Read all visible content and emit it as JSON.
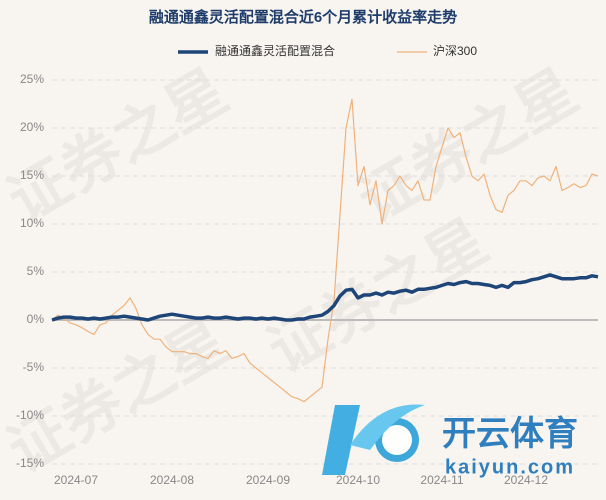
{
  "chart_data": {
    "type": "line",
    "title": "融通通鑫灵活配置混合近6个月累计收益率走势",
    "watermark": "证券之星",
    "logo_text": "开云体育",
    "logo_url": "kaiyun.com",
    "categories": [
      null,
      null,
      null,
      null,
      "2024-07",
      null,
      null,
      null,
      null,
      null,
      null,
      null,
      null,
      null,
      null,
      null,
      null,
      null,
      null,
      null,
      "2024-08",
      null,
      null,
      null,
      null,
      null,
      null,
      null,
      null,
      null,
      null,
      null,
      null,
      null,
      null,
      null,
      "2024-09",
      null,
      null,
      null,
      null,
      null,
      null,
      null,
      null,
      null,
      null,
      null,
      null,
      null,
      null,
      "2024-10",
      null,
      null,
      null,
      null,
      null,
      null,
      null,
      null,
      null,
      null,
      null,
      null,
      null,
      "2024-11",
      null,
      null,
      null,
      null,
      null,
      null,
      null,
      null,
      null,
      null,
      null,
      null,
      null,
      "2024-12",
      null,
      null,
      null,
      null,
      null,
      null,
      null,
      null,
      null,
      null,
      null,
      null
    ],
    "series": [
      {
        "name": "融通通鑫灵活配置混合",
        "color": "#1d4577",
        "width": 3.5,
        "values": [
          0,
          0.2,
          0.3,
          0.3,
          0.2,
          0.2,
          0.1,
          0.2,
          0.1,
          0.2,
          0.3,
          0.3,
          0.4,
          0.3,
          0.2,
          0.1,
          0,
          0.2,
          0.4,
          0.5,
          0.6,
          0.5,
          0.4,
          0.3,
          0.2,
          0.2,
          0.3,
          0.2,
          0.2,
          0.3,
          0.2,
          0.1,
          0.2,
          0.2,
          0.1,
          0.2,
          0.1,
          0.2,
          0.1,
          0,
          0,
          0.1,
          0.1,
          0.3,
          0.4,
          0.5,
          0.9,
          1.5,
          2.5,
          3.1,
          3.2,
          2.3,
          2.6,
          2.6,
          2.8,
          2.6,
          2.9,
          2.8,
          3.0,
          3.1,
          2.9,
          3.2,
          3.2,
          3.3,
          3.4,
          3.6,
          3.8,
          3.7,
          3.9,
          4.0,
          3.8,
          3.8,
          3.7,
          3.6,
          3.4,
          3.6,
          3.4,
          3.9,
          3.9,
          4.0,
          4.2,
          4.3,
          4.5,
          4.7,
          4.5,
          4.3,
          4.3,
          4.3,
          4.4,
          4.4,
          4.6,
          4.5
        ]
      },
      {
        "name": "沪深300",
        "color": "#f0b27a",
        "width": 1.2,
        "values": [
          0,
          0.5,
          0.2,
          -0.3,
          -0.5,
          -0.8,
          -1.2,
          -1.5,
          -0.5,
          -0.3,
          0.5,
          1,
          1.5,
          2.3,
          1.2,
          -0.5,
          -1.5,
          -2,
          -2,
          -2.8,
          -3.3,
          -3.3,
          -3.3,
          -3.5,
          -3.5,
          -3.8,
          -4,
          -3.2,
          -3.5,
          -3.2,
          -4,
          -3.8,
          -3.5,
          -4.5,
          -5,
          -5.5,
          -6,
          -6.5,
          -7,
          -7.5,
          -8,
          -8.2,
          -8.5,
          -8,
          -7.5,
          -7,
          -2,
          2,
          11,
          20,
          23,
          14,
          16,
          12,
          14.5,
          10,
          13.5,
          14,
          15,
          14,
          13.5,
          14.5,
          12.5,
          12.5,
          16,
          18,
          20,
          19,
          19.5,
          17,
          15,
          14.5,
          15.2,
          13,
          11.5,
          11.2,
          13,
          13.5,
          14.5,
          14.5,
          14,
          14.8,
          15,
          14.5,
          16,
          13.5,
          13.8,
          14.2,
          13.8,
          14,
          15.2,
          15
        ]
      }
    ],
    "ylim": [
      -15,
      25
    ],
    "yticks": [
      {
        "value": -15,
        "label": "-15%"
      },
      {
        "value": -10,
        "label": "-10%"
      },
      {
        "value": -5,
        "label": "-5%"
      },
      {
        "value": 0,
        "label": "0%"
      },
      {
        "value": 5,
        "label": "5%"
      },
      {
        "value": 10,
        "label": "10%"
      },
      {
        "value": 15,
        "label": "15%"
      },
      {
        "value": 20,
        "label": "20%"
      },
      {
        "value": 25,
        "label": "25%"
      }
    ],
    "grid": true,
    "legend": "top"
  }
}
